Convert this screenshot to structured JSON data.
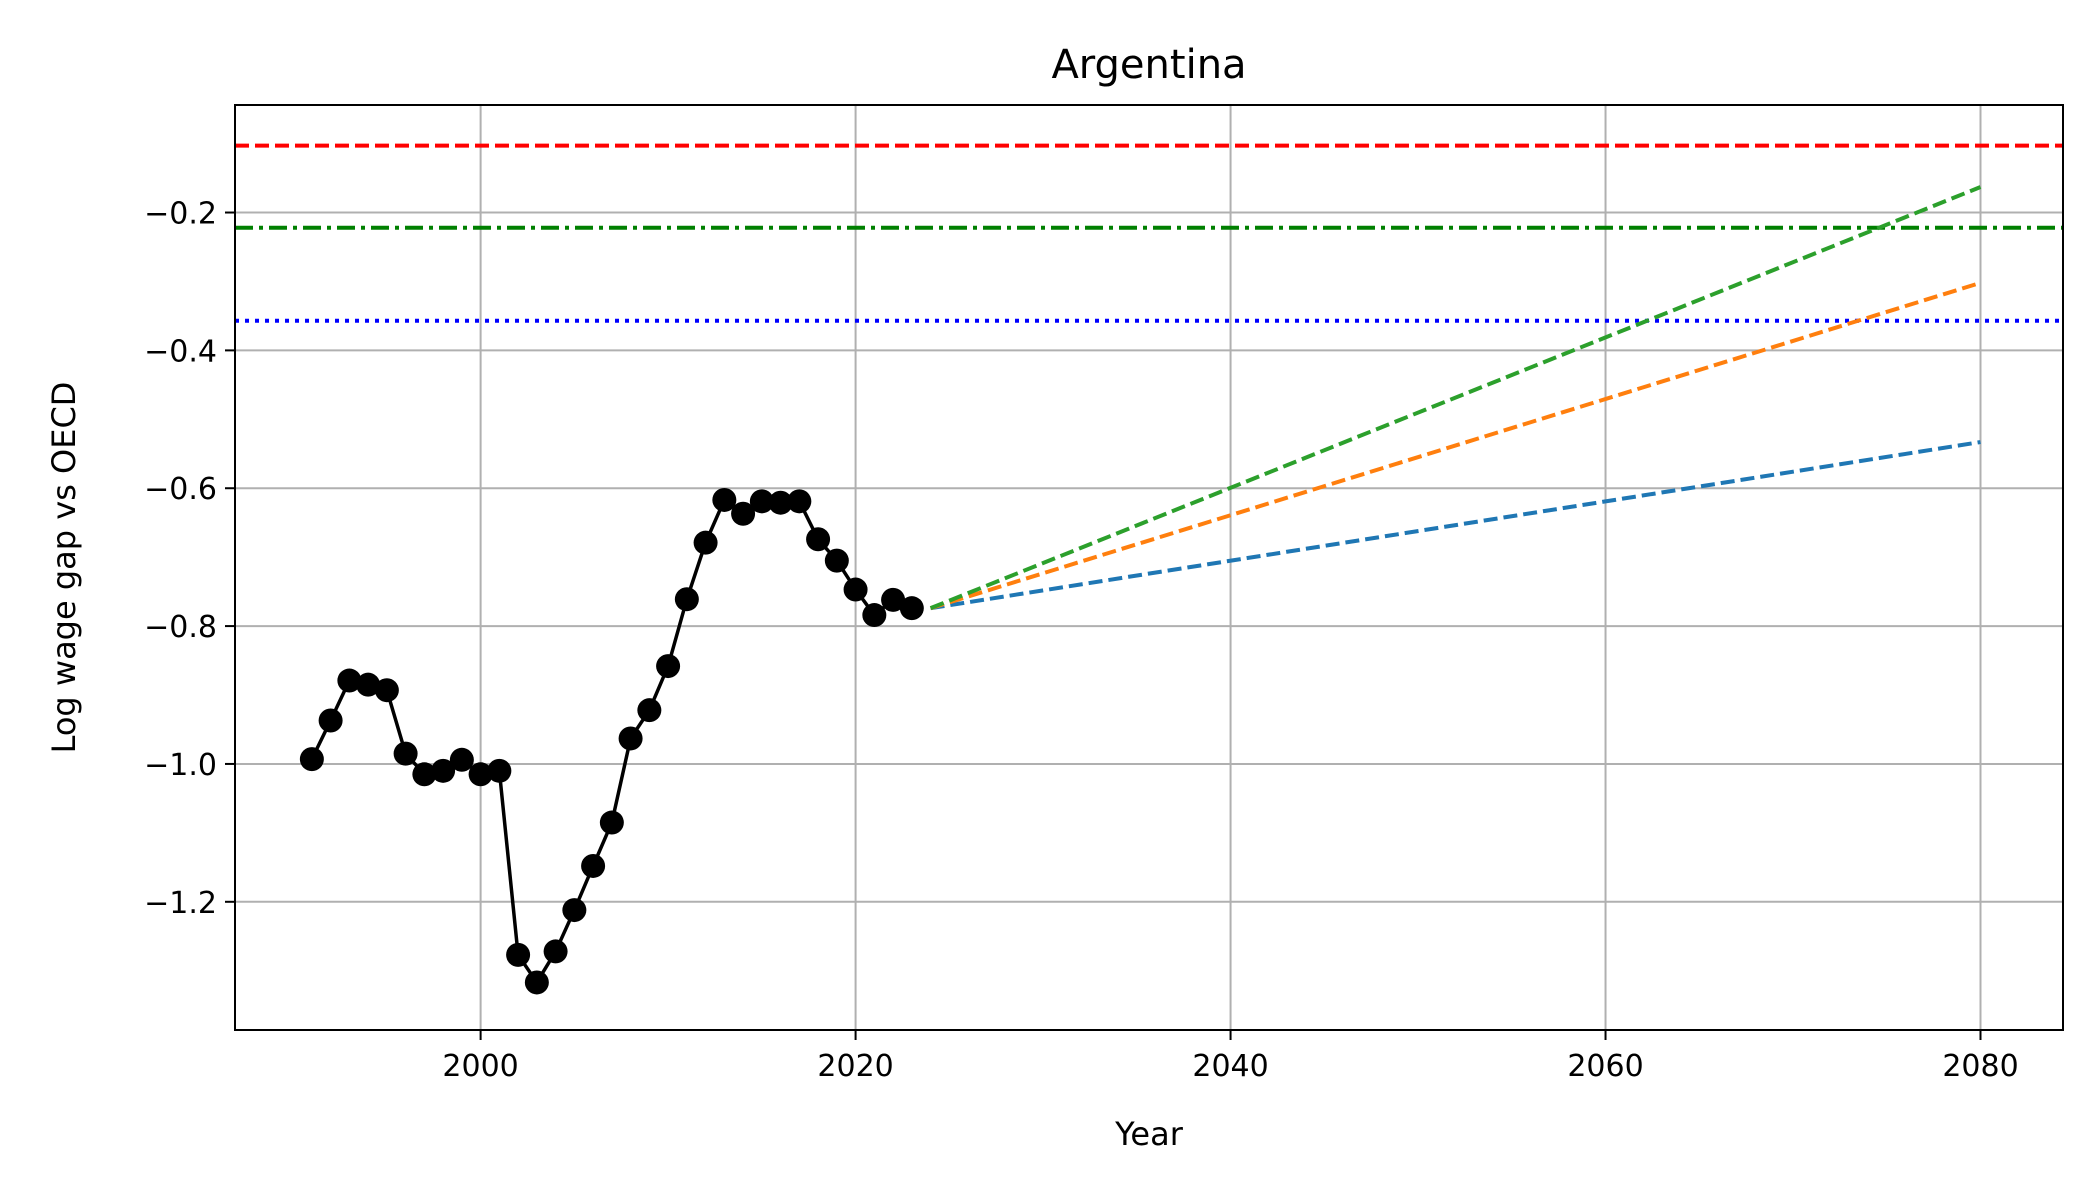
{
  "chart_data": {
    "type": "line",
    "title": "Argentina",
    "xlabel": "Year",
    "ylabel": "Log wage gap vs OECD",
    "xlim": [
      1986.9,
      2084.4
    ],
    "ylim": [
      -1.386,
      -0.044
    ],
    "xticks": [
      2000,
      2020,
      2040,
      2060,
      2080
    ],
    "yticks": [
      -1.2,
      -1.0,
      -0.8,
      -0.6,
      -0.4,
      -0.2
    ],
    "ytick_labels": [
      "−1.2",
      "−1.0",
      "−0.8",
      "−0.6",
      "−0.4",
      "−0.2"
    ],
    "grid": true,
    "history": {
      "color": "#000000",
      "x": [
        1991,
        1992,
        1993,
        1994,
        1995,
        1996,
        1997,
        1998,
        1999,
        2000,
        2001,
        2002,
        2003,
        2004,
        2005,
        2006,
        2007,
        2008,
        2009,
        2010,
        2011,
        2012,
        2013,
        2014,
        2015,
        2016,
        2017,
        2018,
        2019,
        2020,
        2021,
        2022,
        2023
      ],
      "y": [
        -0.993,
        -0.937,
        -0.879,
        -0.885,
        -0.893,
        -0.985,
        -1.015,
        -1.01,
        -0.994,
        -1.015,
        -1.01,
        -1.277,
        -1.317,
        -1.272,
        -1.212,
        -1.148,
        -1.085,
        -0.963,
        -0.922,
        -0.858,
        -0.761,
        -0.679,
        -0.617,
        -0.637,
        -0.619,
        -0.621,
        -0.619,
        -0.674,
        -0.705,
        -0.747,
        -0.784,
        -0.762,
        -0.774
      ]
    },
    "projections": [
      {
        "color": "#1f77b4",
        "x": [
          2024,
          2080
        ],
        "y": [
          -0.774,
          -0.533
        ]
      },
      {
        "color": "#ff7f0e",
        "x": [
          2024,
          2080
        ],
        "y": [
          -0.774,
          -0.302
        ]
      },
      {
        "color": "#2ca02c",
        "x": [
          2024,
          2080
        ],
        "y": [
          -0.774,
          -0.163
        ]
      }
    ],
    "reference_lines": [
      {
        "color": "#ff0000",
        "style": "dashed",
        "y": -0.103
      },
      {
        "color": "#008000",
        "style": "dashdot",
        "y": -0.222
      },
      {
        "color": "#0000ff",
        "style": "dotted",
        "y": -0.357
      }
    ]
  }
}
